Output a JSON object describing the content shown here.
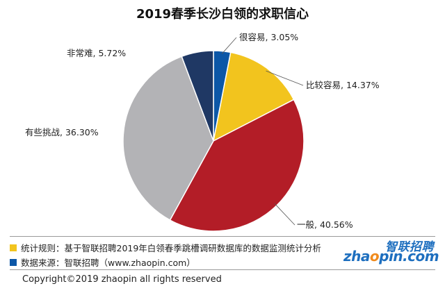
{
  "chart_data": {
    "type": "pie",
    "title": "2019春季长沙白领的求职信心",
    "slices": [
      {
        "label": "很容易",
        "value": 3.05,
        "display": "很容易, 3.05%",
        "color": "#0c57a7"
      },
      {
        "label": "比较容易",
        "value": 14.37,
        "display": "比较容易, 14.37%",
        "color": "#f2c41e"
      },
      {
        "label": "一般",
        "value": 40.56,
        "display": "一般, 40.56%",
        "color": "#b31d27"
      },
      {
        "label": "有些挑战",
        "value": 36.3,
        "display": "有些挑战, 36.30%",
        "color": "#b3b3b6"
      },
      {
        "label": "非常难",
        "value": 5.72,
        "display": "非常难, 5.72%",
        "color": "#1f3864"
      }
    ],
    "legend": "none"
  },
  "notes": {
    "rule": "统计规则：基于智联招聘2019年白领春季跳槽调研数据库的数据监测统计分析",
    "rule_color": "#f2c41e",
    "source": "数据来源：智联招聘（www.zhaopin.com）",
    "source_color": "#0c57a7"
  },
  "logo": {
    "cn": "智联招聘",
    "en_before": "zha",
    "en_dot": "o",
    "en_after": "pin.com"
  },
  "copyright": "Copyright©2019 zhaopin all rights reserved"
}
